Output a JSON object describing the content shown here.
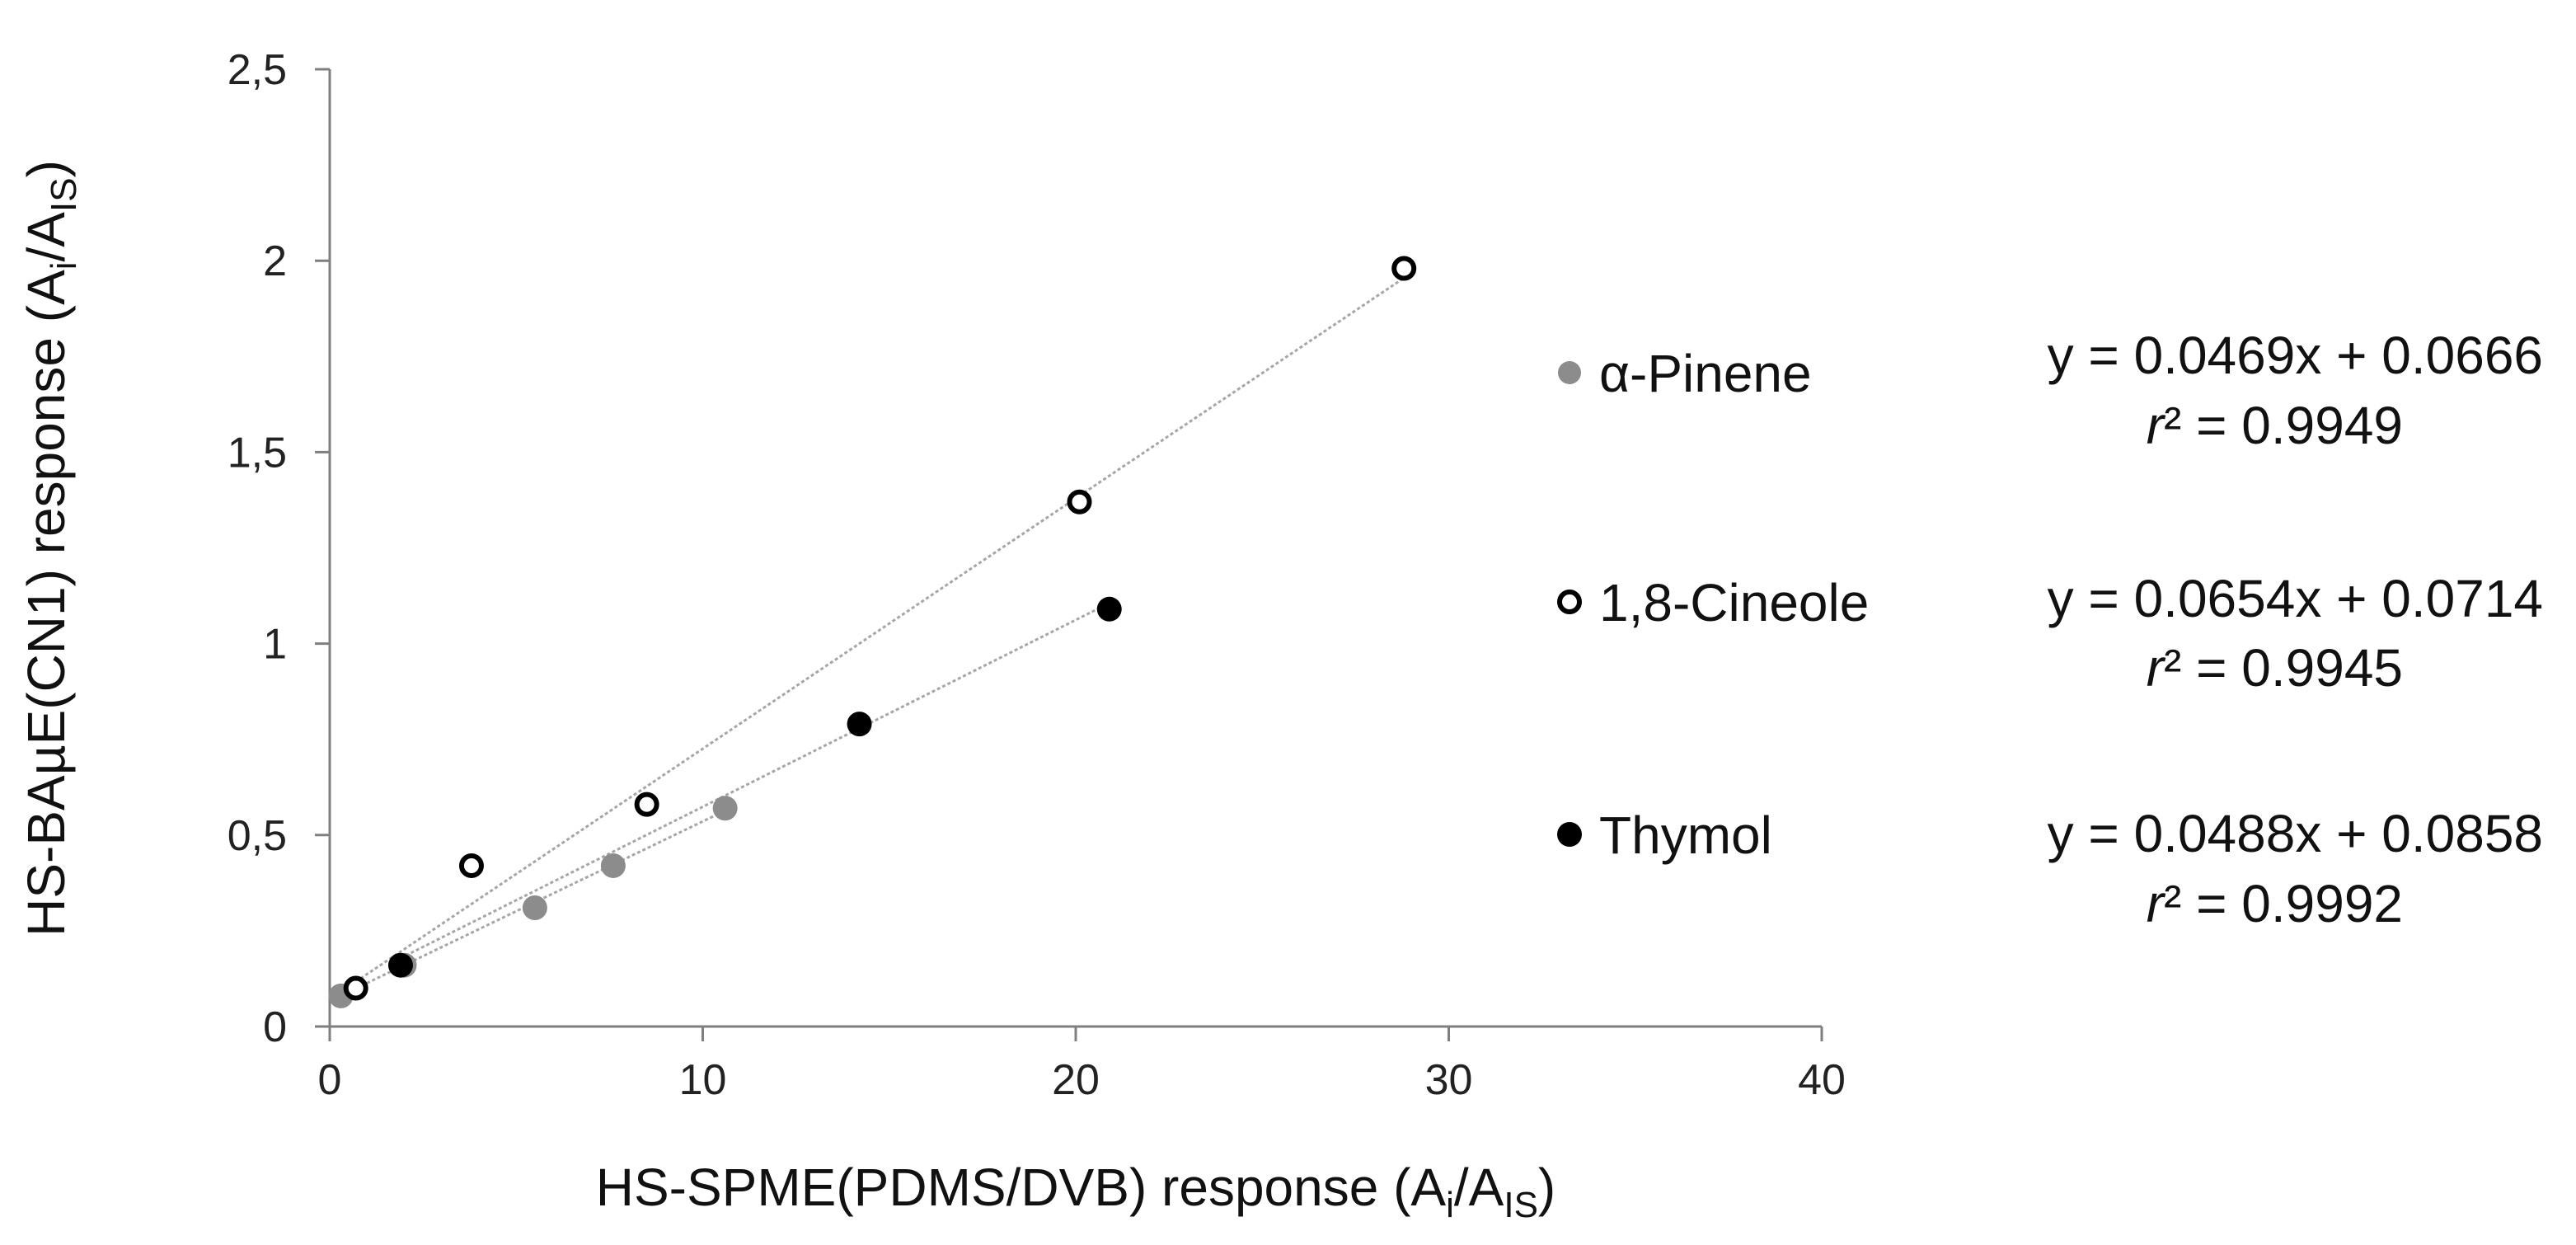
{
  "chart_data": {
    "type": "scatter",
    "xlabel": {
      "main": "HS-SPME(PDMS/DVB) response (A",
      "sub1": "i",
      "mid": "/A",
      "sub2": "IS",
      "end": ")"
    },
    "ylabel": {
      "main": "HS-BAµE(CN1) response (A",
      "sub1": "i",
      "mid": "/A",
      "sub2": "IS",
      "end": ")"
    },
    "xlim": [
      0,
      40
    ],
    "ylim": [
      0,
      2.5
    ],
    "x_ticks": [
      0,
      10,
      20,
      30,
      40
    ],
    "x_tick_labels": [
      "0",
      "10",
      "20",
      "30",
      "40"
    ],
    "y_ticks": [
      0,
      0.5,
      1,
      1.5,
      2,
      2.5
    ],
    "y_tick_labels": [
      "0",
      "0,5",
      "1",
      "1,5",
      "2",
      "2,5"
    ],
    "grid": false,
    "legend_position": "right",
    "series": [
      {
        "name": "α-Pinene",
        "marker": "filled-circle",
        "color": "#8c8c8c",
        "x": [
          0.3,
          2.0,
          5.5,
          7.6,
          10.6
        ],
        "y": [
          0.08,
          0.16,
          0.31,
          0.42,
          0.57
        ],
        "trendline": {
          "slope": 0.0469,
          "intercept": 0.0666
        },
        "equation": "y = 0.0469x + 0.0666",
        "r2_prefix": "r",
        "r2_exp": "²",
        "r2_value": " = 0.9949"
      },
      {
        "name": "1,8-Cineole",
        "marker": "open-circle",
        "color": "#000000",
        "x": [
          0.7,
          3.8,
          8.5,
          20.1,
          28.8
        ],
        "y": [
          0.1,
          0.42,
          0.58,
          1.37,
          1.98
        ],
        "trendline": {
          "slope": 0.0654,
          "intercept": 0.0714
        },
        "equation": "y = 0.0654x + 0.0714",
        "r2_prefix": "r",
        "r2_exp": "²",
        "r2_value": " = 0.9945"
      },
      {
        "name": "Thymol",
        "marker": "filled-circle",
        "color": "#000000",
        "x": [
          1.9,
          14.2,
          20.9
        ],
        "y": [
          0.16,
          0.79,
          1.09
        ],
        "trendline": {
          "slope": 0.0488,
          "intercept": 0.0858
        },
        "equation": "y = 0.0488x + 0.0858",
        "r2_prefix": "r",
        "r2_exp": "²",
        "r2_value": " = 0.9992"
      }
    ]
  }
}
